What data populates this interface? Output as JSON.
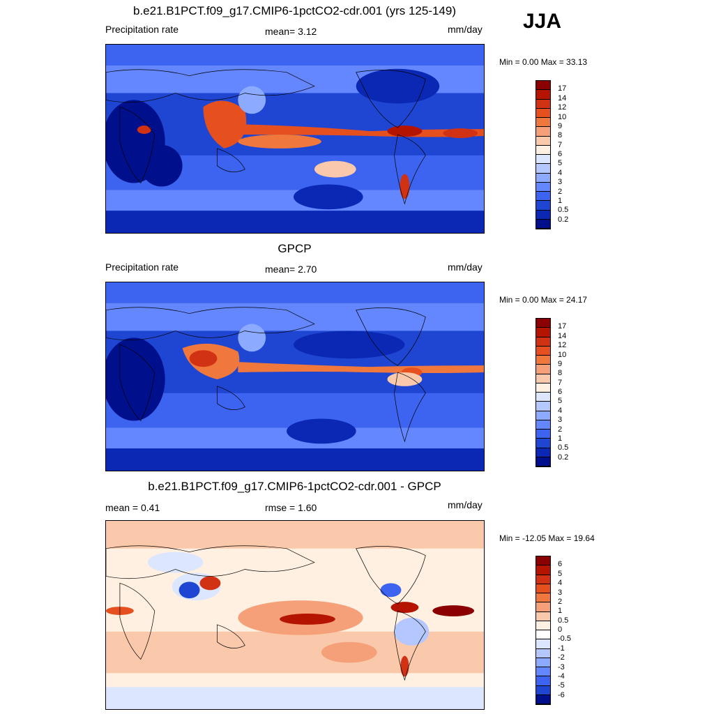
{
  "season": "JJA",
  "panels": [
    {
      "id": "model",
      "title": "b.e21.B1PCT.f09_g17.CMIP6-1pctCO2-cdr.001 (yrs 125-149)",
      "left_label": "Precipitation rate",
      "center_label": "mean=   3.12",
      "right_label": "mm/day",
      "minmax": "Min =   0.00 Max =  33.13",
      "colorbar_labels": [
        "17",
        "14",
        "12",
        "10",
        "9",
        "8",
        "7",
        "6",
        "5",
        "4",
        "3",
        "2",
        "1",
        "0.5",
        "0.2"
      ],
      "colors": [
        "#8b0000",
        "#b41400",
        "#d23214",
        "#e6501e",
        "#f0783c",
        "#f5a078",
        "#fac8aa",
        "#fff0e1",
        "#dce6ff",
        "#b4c8ff",
        "#8caaff",
        "#6487ff",
        "#3c64f0",
        "#1e46d2",
        "#0a28b4",
        "#00108c"
      ]
    },
    {
      "id": "obs",
      "title": "GPCP",
      "left_label": "Precipitation rate",
      "center_label": "mean=   2.70",
      "right_label": "mm/day",
      "minmax": "Min =   0.00 Max =  24.17",
      "colorbar_labels": [
        "17",
        "14",
        "12",
        "10",
        "9",
        "8",
        "7",
        "6",
        "5",
        "4",
        "3",
        "2",
        "1",
        "0.5",
        "0.2"
      ],
      "colors": [
        "#8b0000",
        "#b41400",
        "#d23214",
        "#e6501e",
        "#f0783c",
        "#f5a078",
        "#fac8aa",
        "#fff0e1",
        "#dce6ff",
        "#b4c8ff",
        "#8caaff",
        "#6487ff",
        "#3c64f0",
        "#1e46d2",
        "#0a28b4",
        "#00108c"
      ]
    },
    {
      "id": "diff",
      "title": "b.e21.B1PCT.f09_g17.CMIP6-1pctCO2-cdr.001 - GPCP",
      "left_label": "mean =   0.41",
      "center_label": "rmse =   1.60",
      "right_label": "mm/day",
      "minmax": "Min = -12.05 Max =  19.64",
      "colorbar_labels": [
        "6",
        "5",
        "4",
        "3",
        "2",
        "1",
        "0.5",
        "0",
        "-0.5",
        "-1",
        "-2",
        "-3",
        "-4",
        "-5",
        "-6"
      ],
      "colors": [
        "#8b0000",
        "#b41400",
        "#d23214",
        "#e6501e",
        "#f0783c",
        "#f5a078",
        "#fac8aa",
        "#fff0e1",
        "#ffffff",
        "#dce6ff",
        "#b4c8ff",
        "#8caaff",
        "#6487ff",
        "#3c64f0",
        "#1e46d2",
        "#00108c"
      ]
    }
  ]
}
